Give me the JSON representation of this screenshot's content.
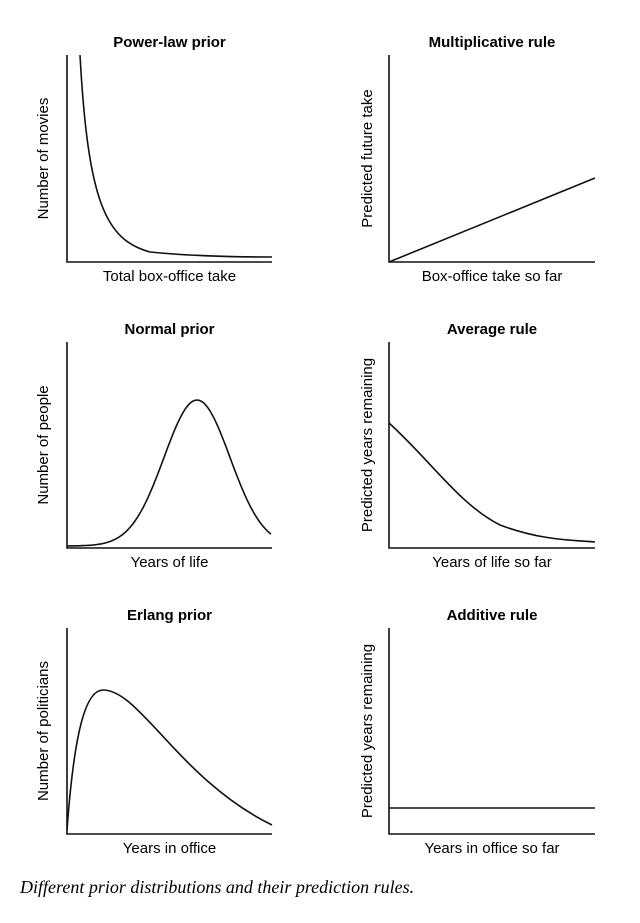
{
  "figure": {
    "panels": [
      {
        "title": "Power-law prior",
        "x_label": "Total box-office take",
        "y_label": "Number of movies"
      },
      {
        "title": "Multiplicative rule",
        "x_label": "Box-office take so far",
        "y_label": "Predicted future take"
      },
      {
        "title": "Normal prior",
        "x_label": "Years of life",
        "y_label": "Number of people"
      },
      {
        "title": "Average rule",
        "x_label": "Years of life so far",
        "y_label": "Predicted years remaining"
      },
      {
        "title": "Erlang prior",
        "x_label": "Years in office",
        "y_label": "Number of politicians"
      },
      {
        "title": "Additive rule",
        "x_label": "Years in office so far",
        "y_label": "Predicted years remaining"
      }
    ],
    "caption": "Different prior distributions and their prediction rules."
  }
}
